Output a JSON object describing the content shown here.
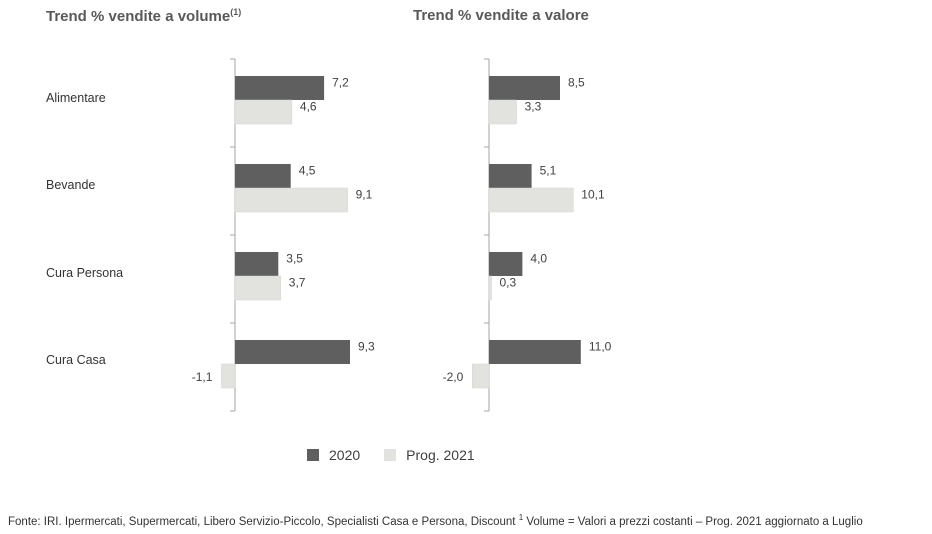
{
  "colors": {
    "series_2020": "#5f5f5f",
    "series_2021": "#e2e3df",
    "axis": "#a6a6a6",
    "label": "#404040"
  },
  "chart_data": [
    {
      "type": "bar",
      "orientation": "horizontal",
      "title": "Trend % vendite a volume",
      "title_sup": "(1)",
      "categories": [
        "Alimentare",
        "Bevande",
        "Cura Persona",
        "Cura Casa"
      ],
      "series": [
        {
          "name": "2020",
          "values": [
            7.2,
            4.5,
            3.5,
            9.3
          ],
          "labels": [
            "7,2",
            "4,5",
            "3,5",
            "9,3"
          ]
        },
        {
          "name": "Prog. 2021",
          "values": [
            4.6,
            9.1,
            3.7,
            -1.1
          ],
          "labels": [
            "4,6",
            "9,1",
            "3,7",
            "-1,1"
          ]
        }
      ],
      "legend_position": "bottom",
      "grid": false
    },
    {
      "type": "bar",
      "orientation": "horizontal",
      "title": "Trend % vendite a valore",
      "categories": [
        "Alimentare",
        "Bevande",
        "Cura Persona",
        "Cura Casa"
      ],
      "series": [
        {
          "name": "2020",
          "values": [
            8.5,
            5.1,
            4.0,
            11.0
          ],
          "labels": [
            "8,5",
            "5,1",
            "4,0",
            "11,0"
          ]
        },
        {
          "name": "Prog. 2021",
          "values": [
            3.3,
            10.1,
            0.3,
            -2.0
          ],
          "labels": [
            "3,3",
            "10,1",
            "0,3",
            "-2,0"
          ]
        }
      ],
      "legend_position": "bottom",
      "grid": false
    }
  ],
  "legend": {
    "items": [
      "2020",
      "Prog. 2021"
    ]
  },
  "footer": {
    "text_a": "Fonte: IRI. Ipermercati, Supermercati, Libero Servizio-Piccolo, Specialisti Casa e Persona, Discount ",
    "sup": "1",
    "text_b": " Volume = Valori a prezzi costanti – Prog. 2021 aggiornato a Luglio"
  }
}
